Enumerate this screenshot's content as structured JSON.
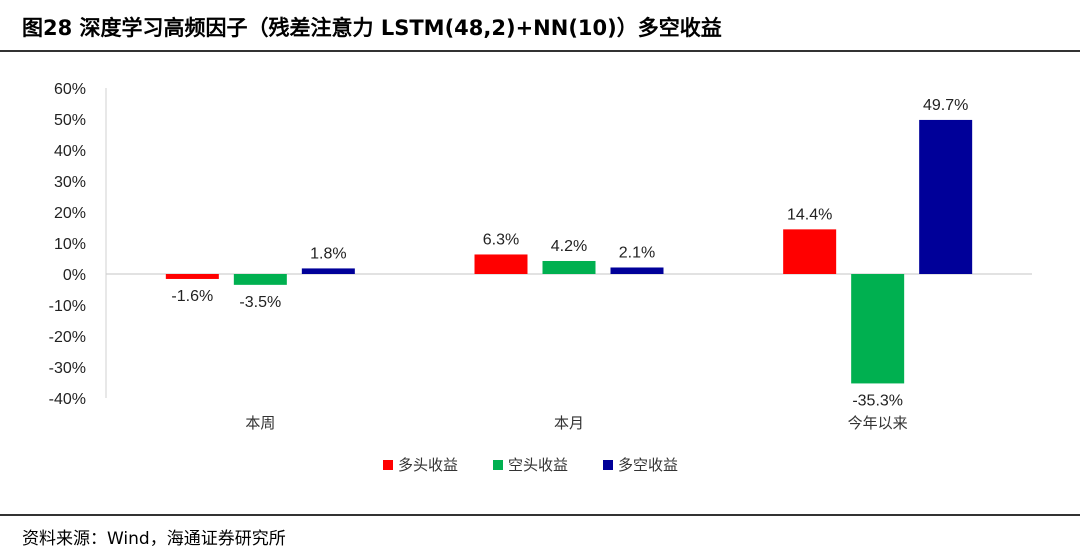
{
  "header": {
    "title": "图28 深度学习高频因子（残差注意力 LSTM(48,2)+NN(10)）多空收益"
  },
  "footer": {
    "source": "资料来源：Wind，海通证券研究所"
  },
  "chart_data": {
    "type": "bar",
    "title": "图28 深度学习高频因子（残差注意力 LSTM(48,2)+NN(10)）多空收益",
    "xlabel": "",
    "ylabel": "",
    "categories": [
      "本周",
      "本月",
      "今年以来"
    ],
    "series": [
      {
        "name": "多头收益",
        "color": "#ff0000",
        "values": [
          -1.6,
          6.3,
          14.4
        ],
        "labels": [
          "-1.6%",
          "6.3%",
          "14.4%"
        ]
      },
      {
        "name": "空头收益",
        "color": "#00b050",
        "values": [
          -3.5,
          4.2,
          -35.3
        ],
        "labels": [
          "-3.5%",
          "4.2%",
          "-35.3%"
        ]
      },
      {
        "name": "多空收益",
        "color": "#000099",
        "values": [
          1.8,
          2.1,
          49.7
        ],
        "labels": [
          "1.8%",
          "2.1%",
          "49.7%"
        ]
      }
    ],
    "ylim": [
      -40,
      60
    ],
    "yticks": [
      60,
      50,
      40,
      30,
      20,
      10,
      0,
      -10,
      -20,
      -30,
      -40
    ],
    "ytick_labels": [
      "60%",
      "50%",
      "40%",
      "30%",
      "20%",
      "10%",
      "0%",
      "-10%",
      "-20%",
      "-30%",
      "-40%"
    ],
    "grid": false,
    "legend_position": "bottom"
  }
}
